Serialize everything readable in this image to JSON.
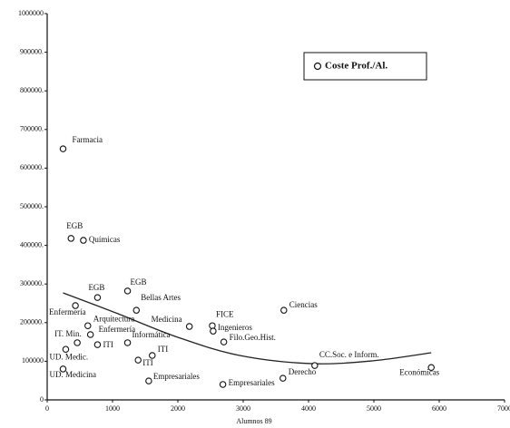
{
  "chart_data": {
    "type": "scatter",
    "x_label": "Alumnos 89",
    "xlim": [
      0,
      7000
    ],
    "xticks": [
      0,
      1000,
      2000,
      3000,
      4000,
      5000,
      6000,
      7000
    ],
    "ylim": [
      0,
      1000000
    ],
    "yticks": [
      0,
      100000,
      {
        "value": 200000,
        "label": "200000."
      },
      {
        "value": 300000,
        "label": "300000."
      },
      {
        "value": 400000,
        "label": "400000."
      },
      {
        "value": 500000,
        "label": "500000."
      },
      {
        "value": 600000,
        "label": "600000."
      },
      {
        "value": 700000,
        "label": "700000."
      },
      {
        "value": 800000,
        "label": "800000."
      },
      {
        "value": 900000,
        "label": "900000."
      },
      1000000
    ],
    "legend": "top-right",
    "series": [
      {
        "name": "Coste  Prof./Al.",
        "color": "#111111",
        "labels": [
          "Farmacia",
          "EGB",
          "Químicas",
          "EGB",
          "EGB",
          "Bellas Artes",
          "Enfermería",
          "Arquitectura",
          "Enfermería",
          "IT. Min.",
          "ITI",
          "Informática",
          "ITI",
          "ITI",
          "UD. Medic.",
          "UD. Medicina",
          "Empresariales",
          "Medicina",
          "FICE",
          "Ingenieros",
          "Filo.Geo.Hist.",
          "Empresariales",
          "Ciencias",
          "Derecho",
          "CC.Soc. e Inform.",
          "Económicas"
        ],
        "x": [
          243,
          365,
          554,
          770,
          1230,
          1365,
          432,
          622,
          662,
          460,
          770,
          1230,
          1392,
          1608,
          284,
          243,
          1554,
          2176,
          2527,
          2540,
          2703,
          2689,
          3622,
          3608,
          4095,
          5878
        ],
        "values": [
          650000,
          418000,
          413000,
          265000,
          282000,
          232000,
          244000,
          192000,
          169000,
          148000,
          143000,
          148000,
          103000,
          115000,
          131000,
          80000,
          49000,
          190000,
          192000,
          178000,
          150000,
          40000,
          232000,
          56000,
          89000,
          84000
        ]
      }
    ],
    "trend": {
      "color": "#222222",
      "x": [
        243,
        1054,
        2000,
        2946,
        4027,
        4973,
        5878
      ],
      "values": [
        277000,
        225000,
        162000,
        115000,
        94000,
        101000,
        122000
      ]
    }
  }
}
